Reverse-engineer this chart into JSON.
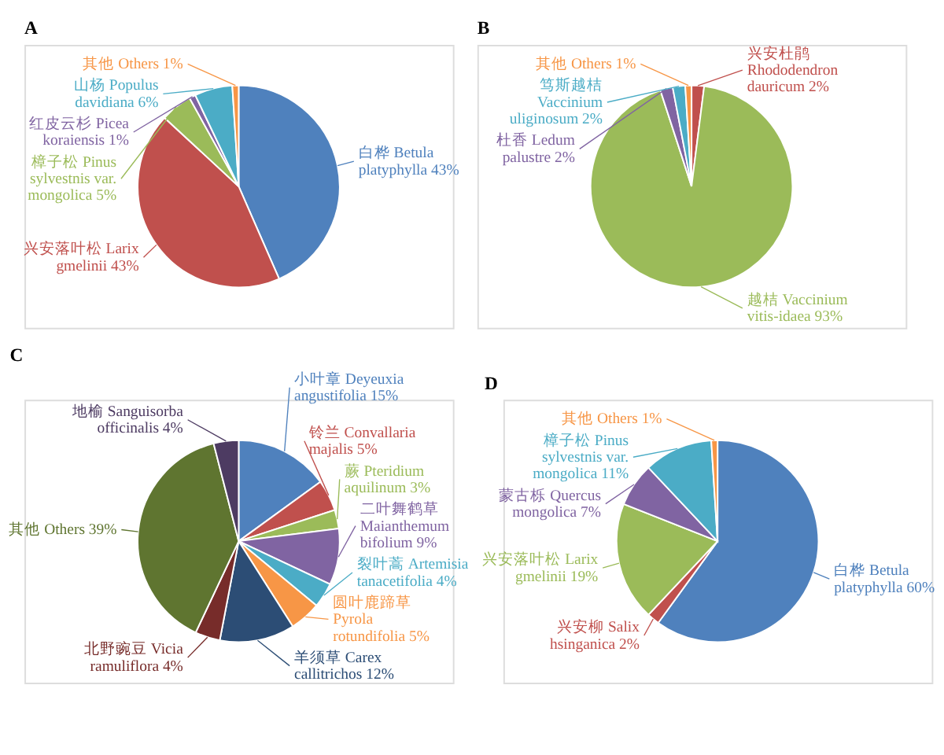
{
  "chart_data": [
    {
      "type": "pie",
      "title": "A",
      "categories": [
        "白桦 Betula platyphylla",
        "兴安落叶松 Larix gmelinii",
        "樟子松 Pinus sylvestnis var. mongolica",
        "红皮云杉 Picea koraiensis",
        "山杨 Populus davidiana",
        "其他 Others"
      ],
      "values": [
        43,
        43,
        5,
        1,
        6,
        1
      ],
      "value_labels": [
        "43%",
        "43%",
        "5%",
        "1%",
        "6%",
        "1%"
      ],
      "colors": [
        "#4f81bd",
        "#c0504d",
        "#9bbb59",
        "#8064a2",
        "#4bacc6",
        "#f79646"
      ]
    },
    {
      "type": "pie",
      "title": "B",
      "categories": [
        "兴安杜鹃 Rhododendron dauricum",
        "越桔 Vaccinium vitis-idaea",
        "杜香 Ledum palustre",
        "笃斯越桔 Vaccinium uliginosum",
        "其他 Others"
      ],
      "values": [
        2,
        93,
        2,
        2,
        1
      ],
      "value_labels": [
        "2%",
        "93%",
        "2%",
        "2%",
        "1%"
      ],
      "colors": [
        "#c0504d",
        "#9bbb59",
        "#8064a2",
        "#4bacc6",
        "#f79646"
      ]
    },
    {
      "type": "pie",
      "title": "C",
      "categories": [
        "小叶章 Deyeuxia angustifolia",
        "铃兰 Convallaria majalis",
        "蕨 Pteridium aquilinum",
        "二叶舞鹤草 Maianthemum bifolium",
        "裂叶蒿 Artemisia tanacetifolia",
        "圆叶鹿蹄草 Pyrola rotundifolia",
        "羊须草 Carex callitrichos",
        "北野豌豆 Vicia ramuliflora",
        "其他 Others",
        "地榆 Sanguisorba officinalis"
      ],
      "values": [
        15,
        5,
        3,
        9,
        4,
        5,
        12,
        4,
        39,
        4
      ],
      "value_labels": [
        "15%",
        "5%",
        "3%",
        "9%",
        "4%",
        "5%",
        "12%",
        "4%",
        "39%",
        "4%"
      ],
      "colors": [
        "#4f81bd",
        "#c0504d",
        "#9bbb59",
        "#8064a2",
        "#4bacc6",
        "#f79646",
        "#2c4d75",
        "#772c2a",
        "#5f7530",
        "#4d3b62"
      ]
    },
    {
      "type": "pie",
      "title": "D",
      "categories": [
        "白桦 Betula platyphylla",
        "兴安柳 Salix hsinganica",
        "兴安落叶松 Larix gmelinii",
        "蒙古栎 Quercus mongolica",
        "樟子松 Pinus sylvestnis var. mongolica",
        "其他 Others"
      ],
      "values": [
        60,
        2,
        19,
        7,
        11,
        1
      ],
      "value_labels": [
        "60%",
        "2%",
        "19%",
        "7%",
        "11%",
        "1%"
      ],
      "colors": [
        "#4f81bd",
        "#c0504d",
        "#9bbb59",
        "#8064a2",
        "#4bacc6",
        "#f79646"
      ]
    }
  ]
}
